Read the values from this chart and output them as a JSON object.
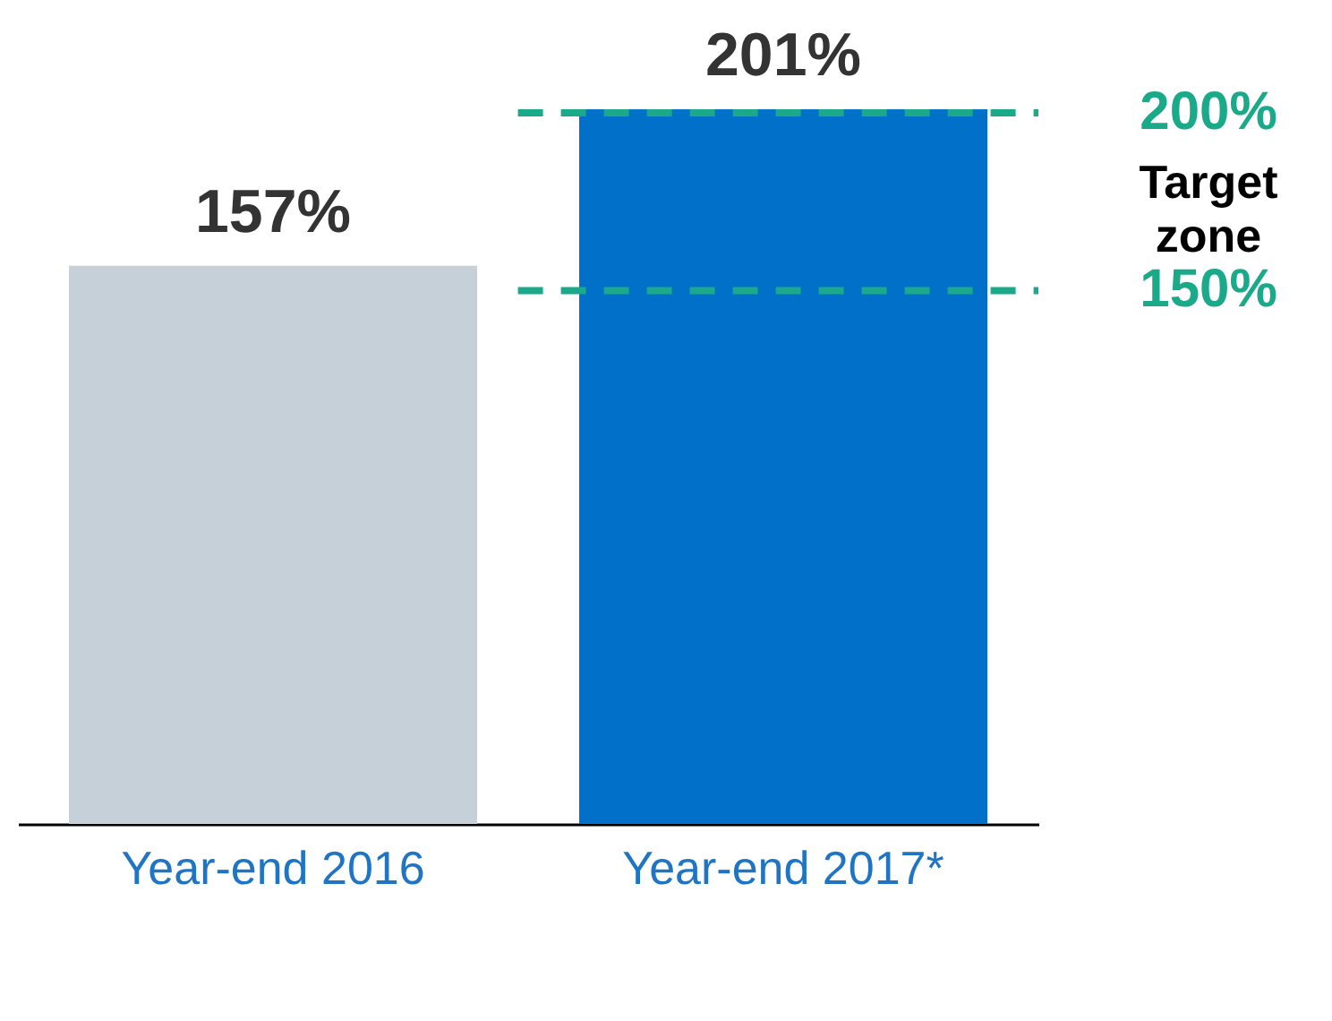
{
  "chart_data": {
    "type": "bar",
    "categories": [
      "Year-end 2016",
      "Year-end 2017*"
    ],
    "values": [
      157,
      201
    ],
    "colors": [
      "#c5d0d8",
      "#0070c8"
    ],
    "value_labels": [
      "157%",
      "201%"
    ],
    "ref_lines": [
      {
        "axis": "y",
        "value": 200,
        "label": "200%",
        "color": "#1aaa8a",
        "line_style": "dashed"
      },
      {
        "axis": "y",
        "value": 150,
        "label": "150%",
        "color": "#1aaa8a",
        "line_style": "dashed"
      }
    ],
    "annotations": [
      "Target zone"
    ],
    "grid": false,
    "legend": false
  }
}
